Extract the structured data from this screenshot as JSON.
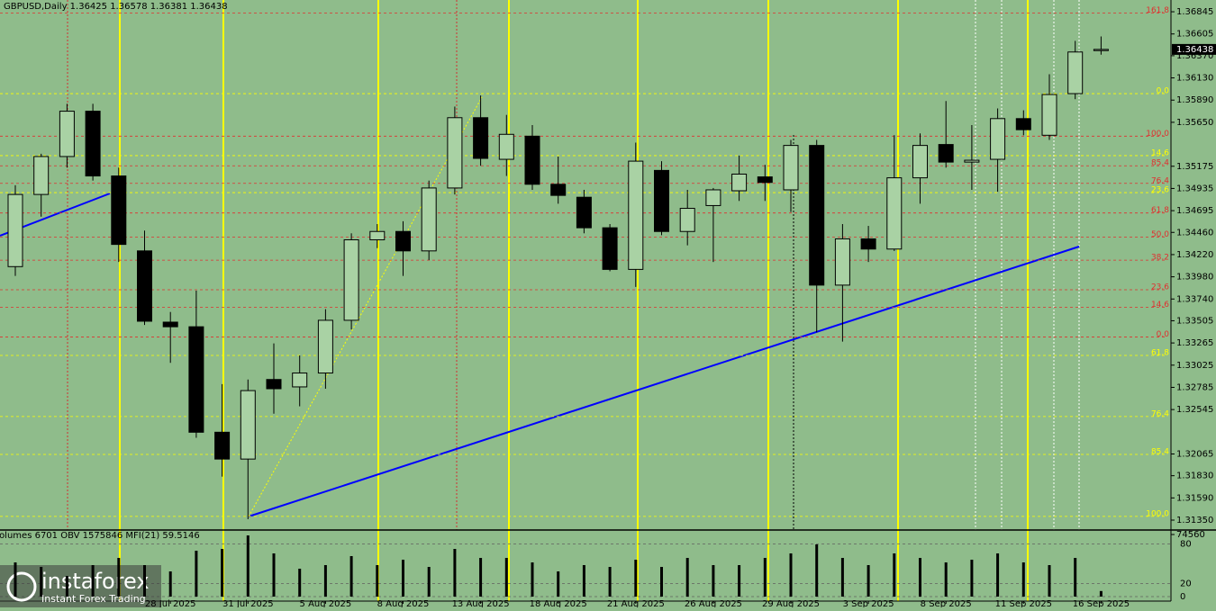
{
  "chart_data": [
    {
      "type": "candlestick",
      "title": "GBPUSD,Daily  1.36425 1.36578 1.36381 1.36438",
      "categories": [
        null,
        null,
        null,
        null,
        null,
        null,
        "28 Jul 2025",
        null,
        null,
        "31 Jul 2025",
        null,
        null,
        "5 Aug 2025",
        null,
        null,
        "8 Aug 2025",
        null,
        null,
        "13 Aug 2025",
        null,
        null,
        "18 Aug 2025",
        null,
        null,
        "21 Aug 2025",
        null,
        null,
        "26 Aug 2025",
        null,
        null,
        "29 Aug 2025",
        null,
        null,
        "3 Sep 2025",
        null,
        null,
        "8 Sep 2025",
        null,
        null,
        "11 Sep 2025",
        null,
        null,
        "16 Sep 2025"
      ],
      "open": [
        1.3409,
        1.3487,
        1.3528,
        1.3577,
        1.3507,
        1.3426,
        1.3349,
        1.3344,
        1.323,
        1.3201,
        1.3287,
        1.3279,
        1.3294,
        1.3351,
        1.3438,
        1.3447,
        1.3426,
        1.3494,
        1.357,
        1.3525,
        1.355,
        1.3498,
        1.3484,
        1.3451,
        1.3406,
        1.3513,
        1.3447,
        1.3475,
        1.3491,
        1.3506,
        1.3492,
        1.354,
        1.3389,
        1.3439,
        1.3428,
        1.3505,
        1.3541,
        1.3522,
        1.3525,
        1.3569,
        1.3551,
        1.3596,
        1.36425
      ],
      "high": [
        1.3497,
        1.3531,
        1.3585,
        1.3585,
        1.3516,
        1.3448,
        1.336,
        1.3383,
        1.3282,
        1.3287,
        1.3326,
        1.3313,
        1.3363,
        1.3445,
        1.3455,
        1.3458,
        1.3502,
        1.3582,
        1.3594,
        1.3573,
        1.3562,
        1.3528,
        1.3492,
        1.3455,
        1.3543,
        1.3523,
        1.3492,
        1.3494,
        1.3529,
        1.3519,
        1.3546,
        1.3546,
        1.3455,
        1.3453,
        1.3551,
        1.3553,
        1.3588,
        1.3562,
        1.358,
        1.3578,
        1.3617,
        1.3653,
        1.36578
      ],
      "low": [
        1.3399,
        1.3463,
        1.3516,
        1.3502,
        1.3414,
        1.3346,
        1.3305,
        1.3224,
        1.3182,
        1.3136,
        1.325,
        1.3258,
        1.3277,
        1.3341,
        1.3429,
        1.3399,
        1.3416,
        1.3487,
        1.3518,
        1.3507,
        1.3492,
        1.3477,
        1.3445,
        1.3404,
        1.3387,
        1.3443,
        1.3432,
        1.3414,
        1.348,
        1.348,
        1.3468,
        1.3338,
        1.3328,
        1.3414,
        1.3426,
        1.3477,
        1.3516,
        1.3492,
        1.349,
        1.3551,
        1.3546,
        1.359,
        1.36381
      ],
      "close": [
        1.3487,
        1.3528,
        1.3577,
        1.3507,
        1.3433,
        1.335,
        1.3344,
        1.323,
        1.3201,
        1.3275,
        1.3277,
        1.3294,
        1.3351,
        1.3438,
        1.3447,
        1.3426,
        1.3494,
        1.357,
        1.3526,
        1.3552,
        1.3498,
        1.3486,
        1.3451,
        1.3406,
        1.3523,
        1.3447,
        1.3472,
        1.3492,
        1.3509,
        1.35,
        1.354,
        1.3389,
        1.3439,
        1.3428,
        1.3505,
        1.354,
        1.3522,
        1.3524,
        1.3569,
        1.3557,
        1.3595,
        1.3641,
        1.36438
      ],
      "up_color": "#a9d2a4",
      "down_color": "#000000",
      "ylim": [
        1.31243,
        1.36972
      ],
      "yticks": [
        1.36845,
        1.36605,
        {
          "value": 1.3637,
          "label": "1.36370"
        },
        {
          "value": 1.3613,
          "label": "1.36130"
        },
        {
          "value": 1.3589,
          "label": "1.35890"
        },
        {
          "value": 1.3565,
          "label": "1.35650"
        },
        1.35175,
        1.34935,
        1.34695,
        {
          "value": 1.3446,
          "label": "1.34460"
        },
        {
          "value": 1.3422,
          "label": "1.34220"
        },
        {
          "value": 1.3398,
          "label": "1.33980"
        },
        {
          "value": 1.3374,
          "label": "1.33740"
        },
        1.33505,
        1.33265,
        1.33025,
        1.32785,
        1.32545,
        1.32065,
        {
          "value": 1.3183,
          "label": "1.31830"
        },
        {
          "value": 1.3159,
          "label": "1.31590"
        },
        {
          "value": 1.3135,
          "label": "1.31350"
        }
      ],
      "levels": [
        {
          "label": "161.8",
          "value": 1.3683,
          "color": "#e03030"
        },
        {
          "label": "0.0",
          "value": 1.3596,
          "color": "#ffff00"
        },
        {
          "label": "100.0",
          "value": 1.355,
          "color": "#e03030"
        },
        {
          "label": "14.6",
          "value": 1.3529,
          "color": "#ffff00"
        },
        {
          "label": "85.4",
          "value": 1.3518,
          "color": "#e03030"
        },
        {
          "label": "76.4",
          "value": 1.3499,
          "color": "#e03030"
        },
        {
          "label": "23.6",
          "value": 1.3489,
          "color": "#ffff00"
        },
        {
          "label": "61.8",
          "value": 1.3467,
          "color": "#e03030"
        },
        {
          "label": "50.0",
          "value": 1.3441,
          "color": "#e03030"
        },
        {
          "label": "38.2",
          "value": 1.3416,
          "color": "#e03030"
        },
        {
          "label": "23.6",
          "value": 1.3384,
          "color": "#e03030"
        },
        {
          "label": "14.6",
          "value": 1.3365,
          "color": "#e03030"
        },
        {
          "label": "0.0",
          "value": 1.3333,
          "color": "#e03030"
        },
        {
          "label": "61.8",
          "value": 1.3313,
          "color": "#ffff00"
        },
        {
          "label": "76.4",
          "value": 1.3247,
          "color": "#ffff00"
        },
        {
          "label": "85.4",
          "value": 1.3206,
          "color": "#ffff00"
        },
        {
          "label": "100.0",
          "value": 1.3139,
          "color": "#ffff00"
        }
      ]
    },
    {
      "type": "volume",
      "title": "Volumes 6701  OBV 1575846  MFI(21) 59.5146",
      "values": [
        41060,
        35660,
        24850,
        37820,
        46470,
        37820,
        30260,
        55110,
        57270,
        73480,
        51870,
        33500,
        37820,
        48630,
        37820,
        44300,
        35660,
        57270,
        46470,
        46470,
        41060,
        30260,
        37820,
        35660,
        44300,
        35660,
        46470,
        37820,
        37820,
        46470,
        51870,
        62670,
        46470,
        37820,
        51870,
        46470,
        41060,
        44300,
        51870,
        41060,
        37820,
        46470,
        6701
      ],
      "color": "#000000",
      "ylim": [
        0,
        74560
      ],
      "yticks": [
        74560
      ],
      "y2lim": [
        0,
        100
      ],
      "y2ticks": [
        0,
        20,
        80
      ]
    }
  ],
  "watermark": {
    "name": "instaforex",
    "tagline": "Instant Forex Trading"
  }
}
